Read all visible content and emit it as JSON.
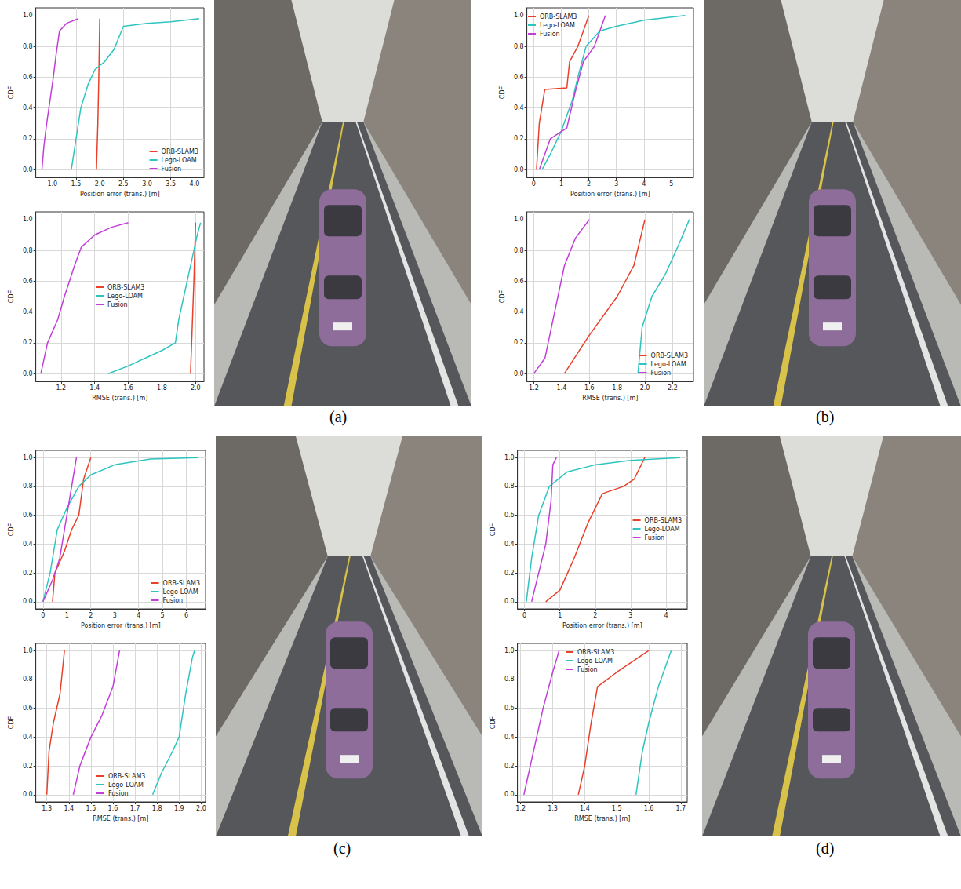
{
  "panel_labels": [
    "(a)",
    "(b)",
    "(c)",
    "(d)"
  ],
  "chart_data": [
    {
      "type": "line",
      "x_label": "Position error (trans.) [m]",
      "y_label": "CDF",
      "xlim": [
        0.65,
        4.2
      ],
      "ylim": [
        -0.05,
        1.05
      ],
      "xticks": [
        {
          "value": 1,
          "label": "1.0"
        },
        1.5,
        {
          "value": 2,
          "label": "2.0"
        },
        2.5,
        {
          "value": 3,
          "label": "3.0"
        },
        3.5,
        {
          "value": 4,
          "label": "4.0"
        }
      ],
      "yticks": [
        {
          "value": 0,
          "label": "0.0"
        },
        0.2,
        0.4,
        0.6,
        0.8,
        {
          "value": 1,
          "label": "1.0"
        }
      ],
      "grid": true,
      "legend": "lower right",
      "series": [
        {
          "name": "ORB-SLAM3",
          "color": "#e8402a",
          "x": [
            1.93,
            1.96,
            1.98,
            2.0
          ],
          "values": [
            0,
            0.3,
            0.6,
            0.98
          ]
        },
        {
          "name": "Lego-LOAM",
          "color": "#2ec4c0",
          "x": [
            1.4,
            1.5,
            1.6,
            1.75,
            1.9,
            2.1,
            2.3,
            2.5,
            3.0,
            3.5,
            4.1
          ],
          "values": [
            0,
            0.2,
            0.4,
            0.55,
            0.65,
            0.7,
            0.78,
            0.93,
            0.95,
            0.96,
            0.98
          ]
        },
        {
          "name": "Fusion",
          "color": "#c13fd8",
          "x": [
            0.78,
            0.82,
            0.88,
            0.95,
            1.02,
            1.08,
            1.15,
            1.3,
            1.55
          ],
          "values": [
            0,
            0.15,
            0.3,
            0.45,
            0.6,
            0.75,
            0.9,
            0.95,
            0.98
          ]
        }
      ]
    },
    {
      "type": "line",
      "x_label": "RMSE (trans.) [m]",
      "y_label": "CDF",
      "xlim": [
        1.05,
        2.05
      ],
      "ylim": [
        -0.05,
        1.05
      ],
      "xticks": [
        1.2,
        1.4,
        1.6,
        1.8,
        {
          "value": 2,
          "label": "2.0"
        }
      ],
      "yticks": [
        {
          "value": 0,
          "label": "0.0"
        },
        0.2,
        0.4,
        0.6,
        0.8,
        {
          "value": 1,
          "label": "1.0"
        }
      ],
      "grid": true,
      "legend": "center",
      "series": [
        {
          "name": "ORB-SLAM3",
          "color": "#e8402a",
          "x": [
            1.97,
            1.98,
            1.99,
            2.0
          ],
          "values": [
            0,
            0.3,
            0.6,
            0.98
          ]
        },
        {
          "name": "Lego-LOAM",
          "color": "#2ec4c0",
          "x": [
            1.48,
            1.6,
            1.7,
            1.8,
            1.88,
            1.9,
            1.93,
            1.96,
            1.99,
            2.01,
            2.03
          ],
          "values": [
            0,
            0.05,
            0.1,
            0.15,
            0.2,
            0.35,
            0.5,
            0.65,
            0.8,
            0.9,
            0.98
          ]
        },
        {
          "name": "Fusion",
          "color": "#c13fd8",
          "x": [
            1.08,
            1.12,
            1.18,
            1.22,
            1.28,
            1.32,
            1.4,
            1.5,
            1.6
          ],
          "values": [
            0,
            0.2,
            0.35,
            0.5,
            0.7,
            0.82,
            0.9,
            0.95,
            0.98
          ]
        }
      ]
    },
    {
      "type": "line",
      "x_label": "Position error (trans.) [m]",
      "y_label": "CDF",
      "xlim": [
        -0.25,
        5.8
      ],
      "ylim": [
        -0.05,
        1.05
      ],
      "xticks": [
        0,
        1,
        2,
        3,
        4,
        5
      ],
      "yticks": [
        {
          "value": 0,
          "label": "0.0"
        },
        0.2,
        0.4,
        0.6,
        0.8,
        {
          "value": 1,
          "label": "1.0"
        }
      ],
      "grid": true,
      "legend": "upper left",
      "series": [
        {
          "name": "ORB-SLAM3",
          "color": "#e8402a",
          "x": [
            0.1,
            0.2,
            0.4,
            1.2,
            1.3,
            1.6,
            1.8,
            2.0
          ],
          "values": [
            0,
            0.3,
            0.52,
            0.53,
            0.7,
            0.8,
            0.9,
            1.0
          ]
        },
        {
          "name": "Lego-LOAM",
          "color": "#2ec4c0",
          "x": [
            0.3,
            0.6,
            1.0,
            1.4,
            1.6,
            1.9,
            2.4,
            3.0,
            4.0,
            5.5
          ],
          "values": [
            0,
            0.1,
            0.25,
            0.45,
            0.6,
            0.8,
            0.9,
            0.93,
            0.97,
            1.0
          ]
        },
        {
          "name": "Fusion",
          "color": "#c13fd8",
          "x": [
            0.2,
            0.6,
            1.2,
            1.5,
            1.8,
            2.2,
            2.4,
            2.6
          ],
          "values": [
            0,
            0.2,
            0.27,
            0.5,
            0.7,
            0.8,
            0.9,
            1.0
          ]
        }
      ]
    },
    {
      "type": "line",
      "x_label": "RMSE (trans.) [m]",
      "y_label": "CDF",
      "xlim": [
        1.15,
        2.35
      ],
      "ylim": [
        -0.05,
        1.05
      ],
      "xticks": [
        1.2,
        1.4,
        1.6,
        1.8,
        {
          "value": 2,
          "label": "2.0"
        },
        2.2
      ],
      "yticks": [
        {
          "value": 0,
          "label": "0.0"
        },
        0.2,
        0.4,
        0.6,
        0.8,
        {
          "value": 1,
          "label": "1.0"
        }
      ],
      "grid": true,
      "legend": "lower right",
      "series": [
        {
          "name": "ORB-SLAM3",
          "color": "#e8402a",
          "x": [
            1.42,
            1.6,
            1.8,
            1.92,
            2.0
          ],
          "values": [
            0,
            0.25,
            0.5,
            0.7,
            1.0
          ]
        },
        {
          "name": "Lego-LOAM",
          "color": "#2ec4c0",
          "x": [
            1.95,
            1.98,
            2.05,
            2.15,
            2.25,
            2.32
          ],
          "values": [
            0,
            0.3,
            0.5,
            0.65,
            0.85,
            1.0
          ]
        },
        {
          "name": "Fusion",
          "color": "#c13fd8",
          "x": [
            1.2,
            1.28,
            1.35,
            1.42,
            1.5,
            1.6
          ],
          "values": [
            0,
            0.1,
            0.4,
            0.7,
            0.88,
            1.0
          ]
        }
      ]
    },
    {
      "type": "line",
      "x_label": "Position error (trans.) [m]",
      "y_label": "CDF",
      "xlim": [
        -0.3,
        6.8
      ],
      "ylim": [
        -0.05,
        1.05
      ],
      "xticks": [
        0,
        1,
        2,
        3,
        4,
        5,
        6
      ],
      "yticks": [
        {
          "value": 0,
          "label": "0.0"
        },
        0.2,
        0.4,
        0.6,
        0.8,
        {
          "value": 1,
          "label": "1.0"
        }
      ],
      "grid": true,
      "legend": "lower right",
      "series": [
        {
          "name": "ORB-SLAM3",
          "color": "#e8402a",
          "x": [
            0.4,
            0.5,
            0.9,
            1.2,
            1.5,
            1.7,
            2.0
          ],
          "values": [
            0,
            0.2,
            0.35,
            0.5,
            0.6,
            0.85,
            1.0
          ]
        },
        {
          "name": "Lego-LOAM",
          "color": "#2ec4c0",
          "x": [
            0,
            0.3,
            0.6,
            1.0,
            1.5,
            2.0,
            3.0,
            4.5,
            6.5
          ],
          "values": [
            0,
            0.2,
            0.5,
            0.65,
            0.8,
            0.88,
            0.95,
            0.99,
            1.0
          ]
        },
        {
          "name": "Fusion",
          "color": "#c13fd8",
          "x": [
            0,
            0.4,
            0.7,
            0.9,
            1.1,
            1.3,
            1.4
          ],
          "values": [
            0,
            0.15,
            0.3,
            0.5,
            0.7,
            0.9,
            1.0
          ]
        }
      ]
    },
    {
      "type": "line",
      "x_label": "RMSE (trans.) [m]",
      "y_label": "CDF",
      "xlim": [
        1.25,
        2.02
      ],
      "ylim": [
        -0.05,
        1.05
      ],
      "xticks": [
        1.3,
        1.4,
        1.5,
        1.6,
        1.7,
        1.8,
        1.9,
        {
          "value": 2,
          "label": "2.0"
        }
      ],
      "yticks": [
        {
          "value": 0,
          "label": "0.0"
        },
        0.2,
        0.4,
        0.6,
        0.8,
        {
          "value": 1,
          "label": "1.0"
        }
      ],
      "grid": true,
      "legend": "lower center",
      "series": [
        {
          "name": "ORB-SLAM3",
          "color": "#e8402a",
          "x": [
            1.3,
            1.31,
            1.33,
            1.36,
            1.38
          ],
          "values": [
            0,
            0.3,
            0.5,
            0.7,
            1.0
          ]
        },
        {
          "name": "Lego-LOAM",
          "color": "#2ec4c0",
          "x": [
            1.78,
            1.82,
            1.87,
            1.9,
            1.93,
            1.96,
            1.97
          ],
          "values": [
            0,
            0.15,
            0.3,
            0.4,
            0.7,
            0.95,
            1.0
          ]
        },
        {
          "name": "Fusion",
          "color": "#c13fd8",
          "x": [
            1.42,
            1.45,
            1.5,
            1.55,
            1.6,
            1.63
          ],
          "values": [
            0,
            0.2,
            0.4,
            0.55,
            0.75,
            1.0
          ]
        }
      ]
    },
    {
      "type": "line",
      "x_label": "Position error (trans.) [m]",
      "y_label": "CDF",
      "xlim": [
        -0.2,
        4.6
      ],
      "ylim": [
        -0.05,
        1.05
      ],
      "xticks": [
        0,
        1,
        2,
        3,
        4
      ],
      "yticks": [
        {
          "value": 0,
          "label": "0.0"
        },
        0.2,
        0.4,
        0.6,
        0.8,
        {
          "value": 1,
          "label": "1.0"
        }
      ],
      "grid": true,
      "legend": "center right",
      "series": [
        {
          "name": "ORB-SLAM3",
          "color": "#e8402a",
          "x": [
            0.6,
            1.0,
            1.4,
            1.8,
            2.2,
            2.8,
            3.1,
            3.4
          ],
          "values": [
            0,
            0.08,
            0.3,
            0.55,
            0.75,
            0.8,
            0.85,
            1.0
          ]
        },
        {
          "name": "Lego-LOAM",
          "color": "#2ec4c0",
          "x": [
            0.05,
            0.2,
            0.4,
            0.7,
            1.2,
            2.0,
            3.0,
            4.4
          ],
          "values": [
            0,
            0.3,
            0.6,
            0.8,
            0.9,
            0.95,
            0.98,
            1.0
          ]
        },
        {
          "name": "Fusion",
          "color": "#c13fd8",
          "x": [
            0.2,
            0.4,
            0.6,
            0.75,
            0.8,
            0.9
          ],
          "values": [
            0,
            0.2,
            0.4,
            0.7,
            0.95,
            1.0
          ]
        }
      ]
    },
    {
      "type": "line",
      "x_label": "RMSE (trans.) [m]",
      "y_label": "CDF",
      "xlim": [
        1.19,
        1.72
      ],
      "ylim": [
        -0.05,
        1.05
      ],
      "xticks": [
        1.2,
        1.3,
        1.4,
        1.5,
        1.6,
        1.7
      ],
      "yticks": [
        {
          "value": 0,
          "label": "0.0"
        },
        0.2,
        0.4,
        0.6,
        0.8,
        {
          "value": 1,
          "label": "1.0"
        }
      ],
      "grid": true,
      "legend": "upper center",
      "series": [
        {
          "name": "ORB-SLAM3",
          "color": "#e8402a",
          "x": [
            1.38,
            1.4,
            1.42,
            1.44,
            1.5,
            1.6
          ],
          "values": [
            0,
            0.2,
            0.5,
            0.75,
            0.85,
            1.0
          ]
        },
        {
          "name": "Lego-LOAM",
          "color": "#2ec4c0",
          "x": [
            1.56,
            1.58,
            1.6,
            1.63,
            1.67
          ],
          "values": [
            0,
            0.3,
            0.5,
            0.75,
            1.0
          ]
        },
        {
          "name": "Fusion",
          "color": "#c13fd8",
          "x": [
            1.21,
            1.24,
            1.27,
            1.3,
            1.32
          ],
          "values": [
            0,
            0.3,
            0.6,
            0.85,
            1.0
          ]
        }
      ]
    }
  ]
}
